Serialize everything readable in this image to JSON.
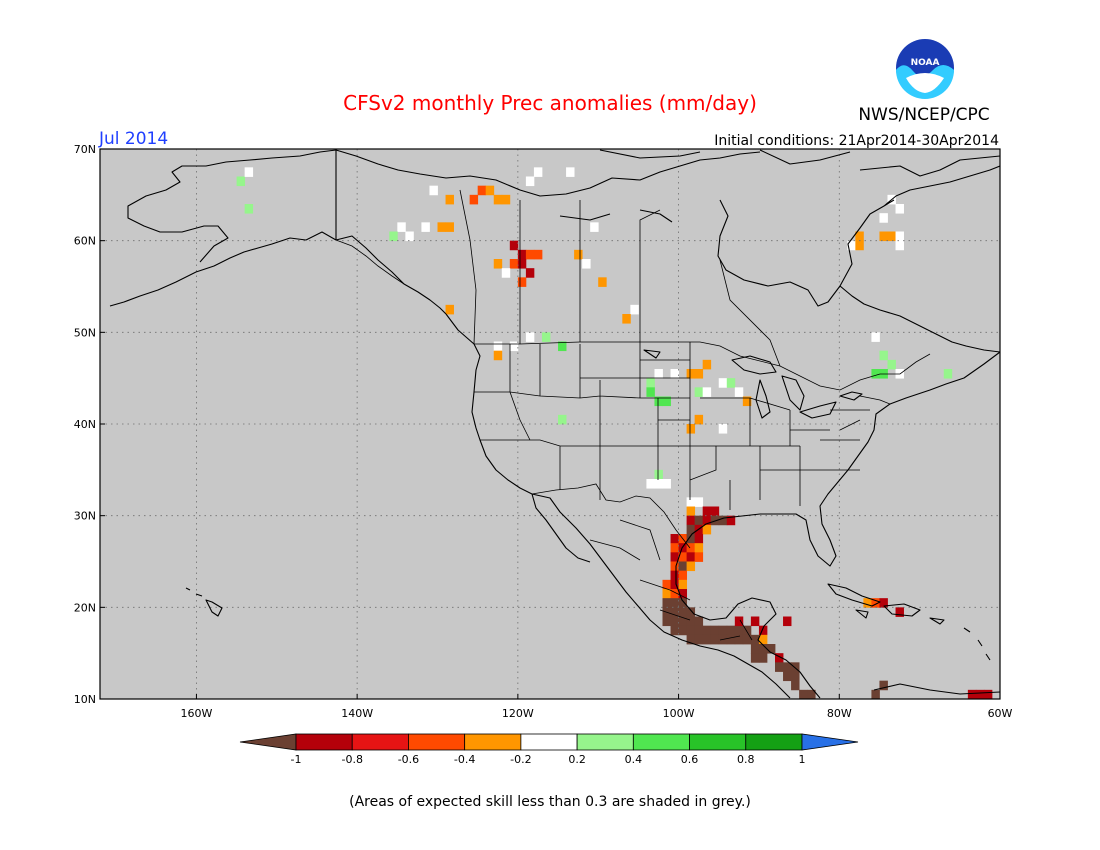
{
  "header": {
    "title": "CFSv2 monthly Prec anomalies (mm/day)",
    "agency": "NWS/NCEP/CPC",
    "valid_month": "Jul 2014",
    "initial_conditions": "Initial conditions: 21Apr2014-30Apr2014",
    "logo_text": "NOAA"
  },
  "map": {
    "lon_range": [
      -172,
      -60
    ],
    "lat_range": [
      10,
      70
    ],
    "background_color": "#c8c8c8",
    "lat_ticks": [
      {
        "value": 70,
        "label": "70N"
      },
      {
        "value": 60,
        "label": "60N"
      },
      {
        "value": 50,
        "label": "50N"
      },
      {
        "value": 40,
        "label": "40N"
      },
      {
        "value": 30,
        "label": "30N"
      },
      {
        "value": 20,
        "label": "20N"
      },
      {
        "value": 10,
        "label": "10N"
      }
    ],
    "lon_ticks": [
      {
        "value": -160,
        "label": "160W"
      },
      {
        "value": -140,
        "label": "140W"
      },
      {
        "value": -120,
        "label": "120W"
      },
      {
        "value": -100,
        "label": "100W"
      },
      {
        "value": -80,
        "label": "80W"
      },
      {
        "value": -60,
        "label": "60W"
      }
    ],
    "cell_deg": 1,
    "anomaly_cells": [
      {
        "lon": -155,
        "lat": 66,
        "cat": "light_green"
      },
      {
        "lon": -154,
        "lat": 67,
        "cat": "white"
      },
      {
        "lon": -154,
        "lat": 63,
        "cat": "light_green"
      },
      {
        "lon": -131,
        "lat": 65,
        "cat": "white"
      },
      {
        "lon": -129,
        "lat": 64,
        "cat": "orange"
      },
      {
        "lon": -126,
        "lat": 64,
        "cat": "orange_red"
      },
      {
        "lon": -125,
        "lat": 65,
        "cat": "orange_red"
      },
      {
        "lon": -124,
        "lat": 65,
        "cat": "orange"
      },
      {
        "lon": -123,
        "lat": 64,
        "cat": "orange"
      },
      {
        "lon": -122,
        "lat": 64,
        "cat": "orange"
      },
      {
        "lon": -119,
        "lat": 66,
        "cat": "white"
      },
      {
        "lon": -118,
        "lat": 67,
        "cat": "white"
      },
      {
        "lon": -114,
        "lat": 67,
        "cat": "white"
      },
      {
        "lon": -130,
        "lat": 61,
        "cat": "orange"
      },
      {
        "lon": -129,
        "lat": 61,
        "cat": "orange"
      },
      {
        "lon": -132,
        "lat": 61,
        "cat": "white"
      },
      {
        "lon": -134,
        "lat": 60,
        "cat": "white"
      },
      {
        "lon": -135,
        "lat": 61,
        "cat": "white"
      },
      {
        "lon": -136,
        "lat": 60,
        "cat": "light_green"
      },
      {
        "lon": -121,
        "lat": 59,
        "cat": "dark_red"
      },
      {
        "lon": -120,
        "lat": 58,
        "cat": "dark_red"
      },
      {
        "lon": -119,
        "lat": 58,
        "cat": "orange_red"
      },
      {
        "lon": -118,
        "lat": 58,
        "cat": "orange_red"
      },
      {
        "lon": -121,
        "lat": 57,
        "cat": "orange_red"
      },
      {
        "lon": -120,
        "lat": 57,
        "cat": "dark_red"
      },
      {
        "lon": -119,
        "lat": 56,
        "cat": "dark_red"
      },
      {
        "lon": -120,
        "lat": 55,
        "cat": "orange_red"
      },
      {
        "lon": -123,
        "lat": 57,
        "cat": "orange"
      },
      {
        "lon": -122,
        "lat": 56,
        "cat": "white"
      },
      {
        "lon": -113,
        "lat": 58,
        "cat": "orange"
      },
      {
        "lon": -112,
        "lat": 57,
        "cat": "white"
      },
      {
        "lon": -110,
        "lat": 55,
        "cat": "orange"
      },
      {
        "lon": -106,
        "lat": 52,
        "cat": "white"
      },
      {
        "lon": -107,
        "lat": 51,
        "cat": "orange"
      },
      {
        "lon": -111,
        "lat": 61,
        "cat": "white"
      },
      {
        "lon": -129,
        "lat": 52,
        "cat": "orange"
      },
      {
        "lon": -123,
        "lat": 48,
        "cat": "white"
      },
      {
        "lon": -121,
        "lat": 48,
        "cat": "white"
      },
      {
        "lon": -119,
        "lat": 49,
        "cat": "white"
      },
      {
        "lon": -117,
        "lat": 49,
        "cat": "light_green"
      },
      {
        "lon": -115,
        "lat": 48,
        "cat": "green"
      },
      {
        "lon": -123,
        "lat": 47,
        "cat": "orange"
      },
      {
        "lon": -115,
        "lat": 40,
        "cat": "light_green"
      },
      {
        "lon": -104,
        "lat": 44,
        "cat": "light_green"
      },
      {
        "lon": -103,
        "lat": 45,
        "cat": "white"
      },
      {
        "lon": -101,
        "lat": 45,
        "cat": "white"
      },
      {
        "lon": -99,
        "lat": 45,
        "cat": "orange"
      },
      {
        "lon": -98,
        "lat": 45,
        "cat": "orange"
      },
      {
        "lon": -97,
        "lat": 46,
        "cat": "orange"
      },
      {
        "lon": -104,
        "lat": 43,
        "cat": "green"
      },
      {
        "lon": -103,
        "lat": 42,
        "cat": "green"
      },
      {
        "lon": -102,
        "lat": 42,
        "cat": "green"
      },
      {
        "lon": -98,
        "lat": 43,
        "cat": "light_green"
      },
      {
        "lon": -97,
        "lat": 43,
        "cat": "white"
      },
      {
        "lon": -95,
        "lat": 44,
        "cat": "white"
      },
      {
        "lon": -94,
        "lat": 44,
        "cat": "light_green"
      },
      {
        "lon": -93,
        "lat": 43,
        "cat": "white"
      },
      {
        "lon": -92,
        "lat": 42,
        "cat": "orange"
      },
      {
        "lon": -99,
        "lat": 39,
        "cat": "orange"
      },
      {
        "lon": -98,
        "lat": 40,
        "cat": "orange"
      },
      {
        "lon": -95,
        "lat": 39,
        "cat": "white"
      },
      {
        "lon": -103,
        "lat": 34,
        "cat": "light_green"
      },
      {
        "lon": -104,
        "lat": 33,
        "cat": "white"
      },
      {
        "lon": -103,
        "lat": 33,
        "cat": "white"
      },
      {
        "lon": -102,
        "lat": 33,
        "cat": "white"
      },
      {
        "lon": -99,
        "lat": 31,
        "cat": "white"
      },
      {
        "lon": -98,
        "lat": 31,
        "cat": "white"
      },
      {
        "lon": -99,
        "lat": 30,
        "cat": "orange"
      },
      {
        "lon": -97,
        "lat": 30,
        "cat": "dark_red"
      },
      {
        "lon": -96,
        "lat": 30,
        "cat": "dark_red"
      },
      {
        "lon": -95,
        "lat": 29,
        "cat": "brown"
      },
      {
        "lon": -94,
        "lat": 29,
        "cat": "dark_red"
      },
      {
        "lon": -99,
        "lat": 29,
        "cat": "dark_red"
      },
      {
        "lon": -98,
        "lat": 29,
        "cat": "brown"
      },
      {
        "lon": -97,
        "lat": 29,
        "cat": "dark_red"
      },
      {
        "lon": -96,
        "lat": 29,
        "cat": "brown"
      },
      {
        "lon": -99,
        "lat": 28,
        "cat": "brown"
      },
      {
        "lon": -98,
        "lat": 28,
        "cat": "dark_red"
      },
      {
        "lon": -97,
        "lat": 28,
        "cat": "orange"
      },
      {
        "lon": -101,
        "lat": 27,
        "cat": "dark_red"
      },
      {
        "lon": -100,
        "lat": 27,
        "cat": "orange_red"
      },
      {
        "lon": -99,
        "lat": 27,
        "cat": "brown"
      },
      {
        "lon": -98,
        "lat": 27,
        "cat": "dark_red"
      },
      {
        "lon": -101,
        "lat": 26,
        "cat": "orange_red"
      },
      {
        "lon": -100,
        "lat": 26,
        "cat": "dark_red"
      },
      {
        "lon": -99,
        "lat": 26,
        "cat": "orange_red"
      },
      {
        "lon": -98,
        "lat": 26,
        "cat": "orange"
      },
      {
        "lon": -101,
        "lat": 25,
        "cat": "dark_red"
      },
      {
        "lon": -100,
        "lat": 25,
        "cat": "orange_red"
      },
      {
        "lon": -99,
        "lat": 25,
        "cat": "dark_red"
      },
      {
        "lon": -98,
        "lat": 25,
        "cat": "orange_red"
      },
      {
        "lon": -101,
        "lat": 24,
        "cat": "orange_red"
      },
      {
        "lon": -100,
        "lat": 24,
        "cat": "brown"
      },
      {
        "lon": -99,
        "lat": 24,
        "cat": "orange"
      },
      {
        "lon": -101,
        "lat": 23,
        "cat": "dark_red"
      },
      {
        "lon": -100,
        "lat": 23,
        "cat": "orange_red"
      },
      {
        "lon": -102,
        "lat": 22,
        "cat": "orange_red"
      },
      {
        "lon": -101,
        "lat": 22,
        "cat": "dark_red"
      },
      {
        "lon": -100,
        "lat": 22,
        "cat": "orange"
      },
      {
        "lon": -102,
        "lat": 21,
        "cat": "orange"
      },
      {
        "lon": -101,
        "lat": 21,
        "cat": "orange_red"
      },
      {
        "lon": -100,
        "lat": 21,
        "cat": "dark_red"
      },
      {
        "lon": -102,
        "lat": 20,
        "cat": "brown"
      },
      {
        "lon": -101,
        "lat": 20,
        "cat": "brown"
      },
      {
        "lon": -100,
        "lat": 20,
        "cat": "brown"
      },
      {
        "lon": -102,
        "lat": 19,
        "cat": "brown"
      },
      {
        "lon": -101,
        "lat": 19,
        "cat": "brown"
      },
      {
        "lon": -100,
        "lat": 19,
        "cat": "brown"
      },
      {
        "lon": -99,
        "lat": 19,
        "cat": "brown"
      },
      {
        "lon": -102,
        "lat": 18,
        "cat": "brown"
      },
      {
        "lon": -101,
        "lat": 18,
        "cat": "brown"
      },
      {
        "lon": -100,
        "lat": 18,
        "cat": "brown"
      },
      {
        "lon": -99,
        "lat": 18,
        "cat": "brown"
      },
      {
        "lon": -98,
        "lat": 18,
        "cat": "brown"
      },
      {
        "lon": -101,
        "lat": 17,
        "cat": "brown"
      },
      {
        "lon": -100,
        "lat": 17,
        "cat": "brown"
      },
      {
        "lon": -99,
        "lat": 17,
        "cat": "brown"
      },
      {
        "lon": -98,
        "lat": 17,
        "cat": "brown"
      },
      {
        "lon": -97,
        "lat": 17,
        "cat": "brown"
      },
      {
        "lon": -96,
        "lat": 17,
        "cat": "brown"
      },
      {
        "lon": -95,
        "lat": 17,
        "cat": "brown"
      },
      {
        "lon": -94,
        "lat": 17,
        "cat": "brown"
      },
      {
        "lon": -93,
        "lat": 17,
        "cat": "brown"
      },
      {
        "lon": -92,
        "lat": 17,
        "cat": "brown"
      },
      {
        "lon": -99,
        "lat": 16,
        "cat": "brown"
      },
      {
        "lon": -98,
        "lat": 16,
        "cat": "brown"
      },
      {
        "lon": -97,
        "lat": 16,
        "cat": "brown"
      },
      {
        "lon": -96,
        "lat": 16,
        "cat": "brown"
      },
      {
        "lon": -95,
        "lat": 16,
        "cat": "brown"
      },
      {
        "lon": -94,
        "lat": 16,
        "cat": "brown"
      },
      {
        "lon": -93,
        "lat": 16,
        "cat": "brown"
      },
      {
        "lon": -92,
        "lat": 16,
        "cat": "brown"
      },
      {
        "lon": -91,
        "lat": 16,
        "cat": "brown"
      },
      {
        "lon": -90,
        "lat": 17,
        "cat": "dark_red"
      },
      {
        "lon": -91,
        "lat": 18,
        "cat": "dark_red"
      },
      {
        "lon": -93,
        "lat": 18,
        "cat": "dark_red"
      },
      {
        "lon": -90,
        "lat": 16,
        "cat": "orange"
      },
      {
        "lon": -91,
        "lat": 15,
        "cat": "brown"
      },
      {
        "lon": -90,
        "lat": 15,
        "cat": "brown"
      },
      {
        "lon": -89,
        "lat": 15,
        "cat": "brown"
      },
      {
        "lon": -91,
        "lat": 14,
        "cat": "brown"
      },
      {
        "lon": -90,
        "lat": 14,
        "cat": "brown"
      },
      {
        "lon": -88,
        "lat": 14,
        "cat": "dark_red"
      },
      {
        "lon": -87,
        "lat": 18,
        "cat": "dark_red"
      },
      {
        "lon": -88,
        "lat": 13,
        "cat": "brown"
      },
      {
        "lon": -87,
        "lat": 13,
        "cat": "brown"
      },
      {
        "lon": -86,
        "lat": 13,
        "cat": "brown"
      },
      {
        "lon": -87,
        "lat": 12,
        "cat": "brown"
      },
      {
        "lon": -86,
        "lat": 12,
        "cat": "brown"
      },
      {
        "lon": -86,
        "lat": 11,
        "cat": "brown"
      },
      {
        "lon": -85,
        "lat": 10,
        "cat": "brown"
      },
      {
        "lon": -84,
        "lat": 10,
        "cat": "brown"
      },
      {
        "lon": -76,
        "lat": 10,
        "cat": "brown"
      },
      {
        "lon": -75,
        "lat": 11,
        "cat": "brown"
      },
      {
        "lon": -64,
        "lat": 10,
        "cat": "dark_red"
      },
      {
        "lon": -63,
        "lat": 10,
        "cat": "dark_red"
      },
      {
        "lon": -62,
        "lat": 10,
        "cat": "dark_red"
      },
      {
        "lon": -77,
        "lat": 20,
        "cat": "orange"
      },
      {
        "lon": -76,
        "lat": 20,
        "cat": "orange_red"
      },
      {
        "lon": -75,
        "lat": 20,
        "cat": "dark_red"
      },
      {
        "lon": -73,
        "lat": 19,
        "cat": "dark_red"
      },
      {
        "lon": -79,
        "lat": 59,
        "cat": "white"
      },
      {
        "lon": -78,
        "lat": 60,
        "cat": "orange"
      },
      {
        "lon": -78,
        "lat": 59,
        "cat": "orange"
      },
      {
        "lon": -75,
        "lat": 60,
        "cat": "orange"
      },
      {
        "lon": -74,
        "lat": 60,
        "cat": "orange"
      },
      {
        "lon": -73,
        "lat": 60,
        "cat": "white"
      },
      {
        "lon": -73,
        "lat": 59,
        "cat": "white"
      },
      {
        "lon": -74,
        "lat": 64,
        "cat": "white"
      },
      {
        "lon": -73,
        "lat": 63,
        "cat": "white"
      },
      {
        "lon": -75,
        "lat": 62,
        "cat": "white"
      },
      {
        "lon": -76,
        "lat": 49,
        "cat": "white"
      },
      {
        "lon": -75,
        "lat": 47,
        "cat": "light_green"
      },
      {
        "lon": -74,
        "lat": 46,
        "cat": "light_green"
      },
      {
        "lon": -73,
        "lat": 45,
        "cat": "white"
      },
      {
        "lon": -76,
        "lat": 45,
        "cat": "green"
      },
      {
        "lon": -75,
        "lat": 45,
        "cat": "green"
      },
      {
        "lon": -67,
        "lat": 45,
        "cat": "light_green"
      }
    ]
  },
  "legend": {
    "categories": [
      {
        "key": "brown",
        "range": "< -1",
        "color": "#6b4032"
      },
      {
        "key": "dark_red",
        "range": "-1 to -0.8",
        "color": "#b4000a"
      },
      {
        "key": "red",
        "range": "-0.8 to -0.6",
        "color": "#e61414"
      },
      {
        "key": "orange_red",
        "range": "-0.6 to -0.4",
        "color": "#ff4a00"
      },
      {
        "key": "orange",
        "range": "-0.4 to -0.2",
        "color": "#ff9600"
      },
      {
        "key": "white",
        "range": "-0.2 to 0.2",
        "color": "#ffffff"
      },
      {
        "key": "light_green",
        "range": "0.2 to 0.4",
        "color": "#96f58c"
      },
      {
        "key": "green",
        "range": "0.4 to 0.6",
        "color": "#50e650"
      },
      {
        "key": "mid_green",
        "range": "0.6 to 0.8",
        "color": "#28c328"
      },
      {
        "key": "dark_green",
        "range": "0.8 to 1",
        "color": "#14a014"
      },
      {
        "key": "blue",
        "range": "> 1",
        "color": "#2870e6"
      }
    ],
    "tick_labels": [
      "-1",
      "-0.8",
      "-0.6",
      "-0.4",
      "-0.2",
      "0.2",
      "0.4",
      "0.6",
      "0.8",
      "1"
    ],
    "footnote": "(Areas of expected skill less than 0.3 are shaded in grey.)"
  }
}
